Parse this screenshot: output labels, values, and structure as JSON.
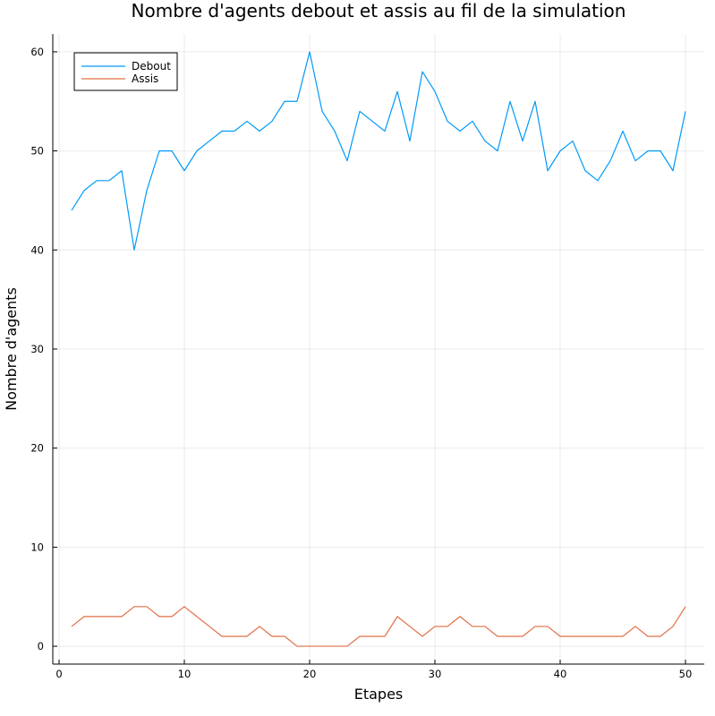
{
  "chart_data": {
    "type": "line",
    "title": "Nombre d'agents debout et assis au fil de la simulation",
    "xlabel": "Etapes",
    "ylabel": "Nombre d'agents",
    "xlim": [
      -0.5,
      51.5
    ],
    "ylim": [
      -1.8,
      61.8
    ],
    "xticks": [
      0,
      10,
      20,
      30,
      40,
      50
    ],
    "yticks": [
      0,
      10,
      20,
      30,
      40,
      50,
      60
    ],
    "grid": true,
    "legend_position": "top-left",
    "x": [
      1,
      2,
      3,
      4,
      5,
      6,
      7,
      8,
      9,
      10,
      11,
      12,
      13,
      14,
      15,
      16,
      17,
      18,
      19,
      20,
      21,
      22,
      23,
      24,
      25,
      26,
      27,
      28,
      29,
      30,
      31,
      32,
      33,
      34,
      35,
      36,
      37,
      38,
      39,
      40,
      41,
      42,
      43,
      44,
      45,
      46,
      47,
      48,
      49,
      50
    ],
    "series": [
      {
        "name": "Debout",
        "color": "#009AFA",
        "values": [
          44,
          46,
          47,
          47,
          48,
          40,
          46,
          50,
          50,
          48,
          50,
          51,
          52,
          52,
          53,
          52,
          53,
          55,
          55,
          60,
          54,
          52,
          49,
          54,
          53,
          52,
          56,
          51,
          58,
          56,
          53,
          52,
          53,
          51,
          50,
          55,
          51,
          55,
          48,
          50,
          51,
          48,
          47,
          49,
          52,
          49,
          50,
          50,
          48,
          54
        ]
      },
      {
        "name": "Assis",
        "color": "#E26F46",
        "values": [
          2,
          3,
          3,
          3,
          3,
          4,
          4,
          3,
          3,
          4,
          3,
          2,
          1,
          1,
          1,
          2,
          1,
          1,
          0,
          0,
          0,
          0,
          0,
          1,
          1,
          1,
          3,
          2,
          1,
          2,
          2,
          3,
          2,
          2,
          1,
          1,
          1,
          2,
          2,
          1,
          1,
          1,
          1,
          1,
          1,
          2,
          1,
          1,
          2,
          4
        ]
      }
    ]
  }
}
